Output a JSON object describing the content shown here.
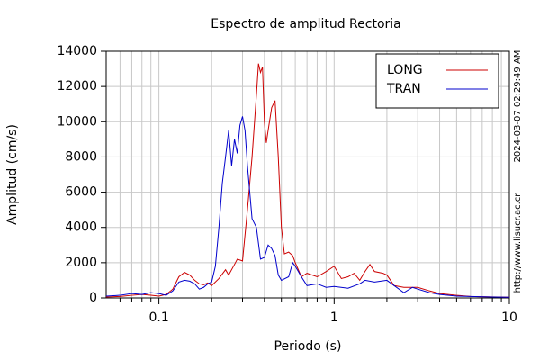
{
  "chart_data": {
    "type": "line",
    "title": "Espectro de amplitud Rectoria",
    "xlabel": "Periodo (s)",
    "ylabel": "Amplitud (cm/s)",
    "xscale": "log",
    "xlim": [
      0.05,
      10
    ],
    "ylim": [
      0,
      14000
    ],
    "xticks": [
      0.1,
      1,
      10
    ],
    "xminorticks": [
      0.06,
      0.07,
      0.08,
      0.09,
      0.2,
      0.3,
      0.4,
      0.5,
      0.6,
      0.7,
      0.8,
      0.9,
      2,
      3,
      4,
      5,
      6,
      7,
      8,
      9
    ],
    "yticks": [
      0,
      2000,
      4000,
      6000,
      8000,
      10000,
      12000,
      14000
    ],
    "grid": true,
    "legend": "upper right",
    "annotations": [
      "2024-03-07 02:29:49 AM",
      "http://www.lisucr.ac.cr"
    ],
    "series": [
      {
        "name": "LONG",
        "color": "#cc0000",
        "x": [
          0.05,
          0.06,
          0.07,
          0.08,
          0.09,
          0.1,
          0.11,
          0.12,
          0.13,
          0.14,
          0.15,
          0.16,
          0.17,
          0.18,
          0.19,
          0.2,
          0.22,
          0.24,
          0.25,
          0.27,
          0.28,
          0.3,
          0.32,
          0.34,
          0.36,
          0.37,
          0.38,
          0.39,
          0.4,
          0.41,
          0.42,
          0.44,
          0.46,
          0.48,
          0.5,
          0.52,
          0.55,
          0.58,
          0.6,
          0.65,
          0.7,
          0.8,
          0.9,
          1.0,
          1.1,
          1.2,
          1.3,
          1.4,
          1.5,
          1.6,
          1.7,
          1.9,
          2.0,
          2.2,
          2.5,
          3.0,
          3.5,
          4.0,
          5.0,
          6.0,
          8.0,
          10
        ],
        "values": [
          50,
          80,
          150,
          200,
          150,
          100,
          200,
          500,
          1200,
          1450,
          1300,
          1000,
          800,
          750,
          850,
          700,
          1100,
          1600,
          1300,
          1900,
          2200,
          2100,
          5000,
          8000,
          11500,
          13300,
          12800,
          13100,
          10000,
          8800,
          9500,
          10800,
          11200,
          8000,
          4000,
          2500,
          2600,
          2400,
          2000,
          1200,
          1400,
          1200,
          1500,
          1800,
          1100,
          1200,
          1400,
          1000,
          1500,
          1900,
          1500,
          1400,
          1300,
          700,
          600,
          600,
          400,
          250,
          150,
          80,
          60,
          40
        ]
      },
      {
        "name": "TRAN",
        "color": "#0000cc",
        "x": [
          0.05,
          0.06,
          0.07,
          0.08,
          0.09,
          0.1,
          0.11,
          0.12,
          0.13,
          0.14,
          0.15,
          0.16,
          0.17,
          0.18,
          0.19,
          0.2,
          0.21,
          0.22,
          0.23,
          0.24,
          0.25,
          0.26,
          0.27,
          0.28,
          0.29,
          0.3,
          0.31,
          0.32,
          0.34,
          0.36,
          0.38,
          0.4,
          0.42,
          0.44,
          0.46,
          0.48,
          0.5,
          0.55,
          0.58,
          0.6,
          0.65,
          0.7,
          0.8,
          0.9,
          1.0,
          1.2,
          1.4,
          1.5,
          1.7,
          2.0,
          2.2,
          2.5,
          2.8,
          3.0,
          3.5,
          4.0,
          5,
          6,
          8,
          10
        ],
        "values": [
          100,
          150,
          250,
          200,
          300,
          250,
          150,
          400,
          900,
          1000,
          950,
          800,
          500,
          600,
          800,
          900,
          1800,
          4000,
          6500,
          8000,
          9500,
          7500,
          9000,
          8200,
          9800,
          10300,
          9500,
          7500,
          4500,
          4000,
          2200,
          2300,
          3000,
          2800,
          2400,
          1300,
          1000,
          1200,
          2000,
          1800,
          1200,
          700,
          800,
          600,
          650,
          550,
          800,
          1000,
          900,
          1000,
          700,
          300,
          600,
          500,
          300,
          200,
          100,
          80,
          50,
          40
        ]
      }
    ]
  }
}
